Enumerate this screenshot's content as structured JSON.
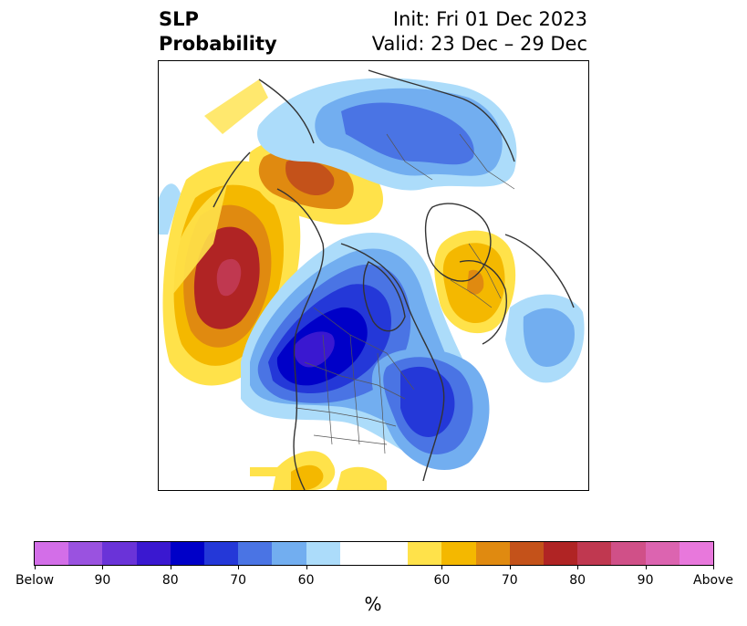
{
  "header": {
    "title_line1": "SLP",
    "title_line2": "Probability",
    "init": "Init: Fri 01 Dec 2023",
    "valid": "Valid: 23 Dec – 29 Dec"
  },
  "colorbar": {
    "colors": [
      "#d36ee8",
      "#9a52e0",
      "#6a33d8",
      "#3a18d0",
      "#0000c8",
      "#2438d8",
      "#4a74e4",
      "#72aef0",
      "#acdcfa",
      "#ffffff",
      "#ffffff",
      "#ffe24a",
      "#f4b800",
      "#e08a10",
      "#c4521a",
      "#b02424",
      "#c03850",
      "#d05088",
      "#dc64b0",
      "#e878dc"
    ],
    "tick_labels": [
      "Below",
      "90",
      "80",
      "70",
      "60",
      "60",
      "70",
      "80",
      "90",
      "Above"
    ],
    "unit": "%"
  },
  "map": {
    "projection": "north-polar-stereographic",
    "anomalies": [
      {
        "region": "North Pacific / Aleutians",
        "sign": "above",
        "max_category": "90"
      },
      {
        "region": "Alaska / Yukon",
        "sign": "above",
        "max_category": "70"
      },
      {
        "region": "Western Canada / Northwest US",
        "sign": "below",
        "max_category": "Below"
      },
      {
        "region": "Eastern Canada / Great Lakes",
        "sign": "below",
        "max_category": "80"
      },
      {
        "region": "Northern Siberia",
        "sign": "below",
        "max_category": "70"
      },
      {
        "region": "Europe",
        "sign": "above",
        "max_category": "70"
      },
      {
        "region": "Eastern North Atlantic",
        "sign": "below",
        "max_category": "60"
      },
      {
        "region": "Gulf of Mexico",
        "sign": "above",
        "max_category": "60"
      }
    ]
  }
}
